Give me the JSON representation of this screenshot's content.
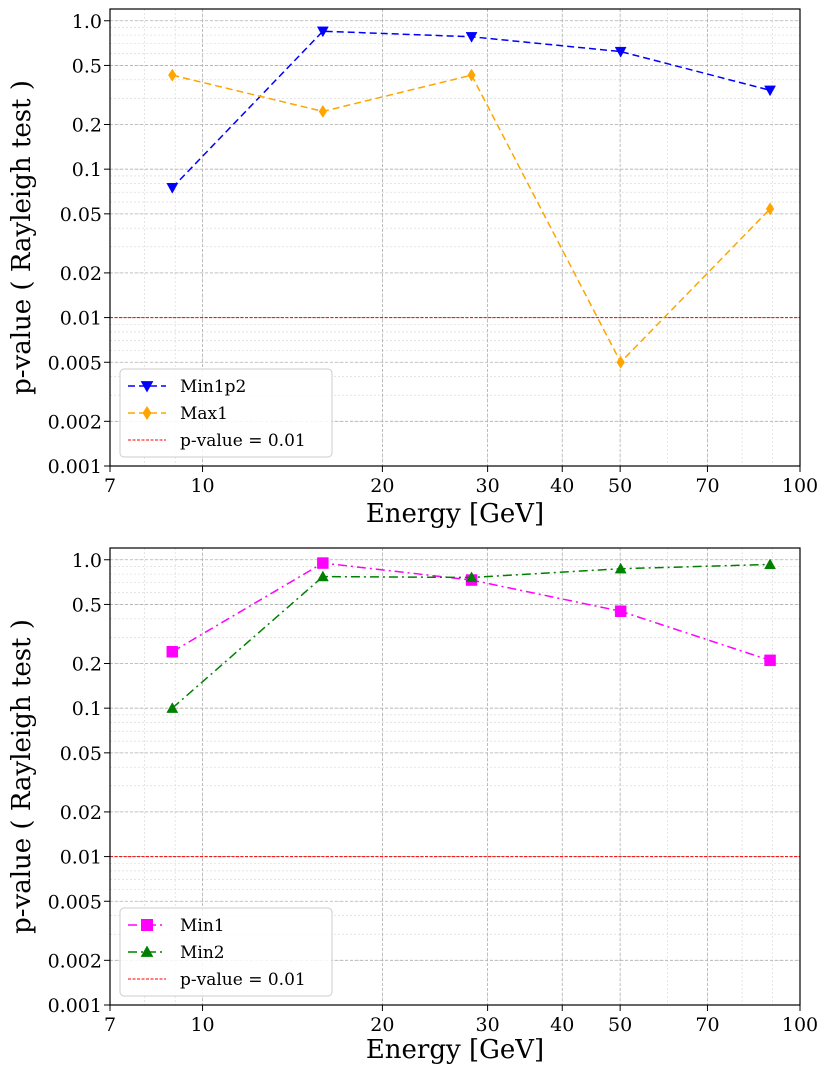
{
  "chart_data": [
    {
      "type": "line",
      "xscale": "log",
      "yscale": "log",
      "xlim": [
        7,
        100
      ],
      "ylim": [
        0.001,
        1.2
      ],
      "xticks": [
        7,
        10,
        20,
        30,
        40,
        50,
        70,
        100
      ],
      "xtick_labels": [
        "7",
        "10",
        "20",
        "30",
        "40",
        "50",
        "70",
        "100"
      ],
      "yticks": [
        0.001,
        0.002,
        0.005,
        0.01,
        0.02,
        0.05,
        0.1,
        0.2,
        0.5,
        1.0
      ],
      "ytick_labels": [
        "0.001",
        "0.002",
        "0.005",
        "0.01",
        "0.02",
        "0.05",
        "0.1",
        "0.2",
        "0.5",
        "1.0"
      ],
      "xlabel": "Energy [GeV]",
      "ylabel": "p-value  ( Rayleigh test )",
      "grid": true,
      "legend_position": "lower-left",
      "x": [
        8.9,
        15.9,
        28.2,
        50.1,
        89.1
      ],
      "series": [
        {
          "name": "Min1p2",
          "values": [
            0.075,
            0.85,
            0.78,
            0.62,
            0.34
          ],
          "color": "#0000ff",
          "marker": "triangle-down",
          "linestyle": "dashed"
        },
        {
          "name": "Max1",
          "values": [
            0.43,
            0.245,
            0.43,
            0.005,
            0.054
          ],
          "color": "#ffa500",
          "marker": "diamond",
          "linestyle": "dashed"
        }
      ],
      "threshold": {
        "label": "p-value = 0.01",
        "value": 0.01,
        "color": "#ff0000"
      }
    },
    {
      "type": "line",
      "xscale": "log",
      "yscale": "log",
      "xlim": [
        7,
        100
      ],
      "ylim": [
        0.001,
        1.2
      ],
      "xticks": [
        7,
        10,
        20,
        30,
        40,
        50,
        70,
        100
      ],
      "xtick_labels": [
        "7",
        "10",
        "20",
        "30",
        "40",
        "50",
        "70",
        "100"
      ],
      "yticks": [
        0.001,
        0.002,
        0.005,
        0.01,
        0.02,
        0.05,
        0.1,
        0.2,
        0.5,
        1.0
      ],
      "ytick_labels": [
        "0.001",
        "0.002",
        "0.005",
        "0.01",
        "0.02",
        "0.05",
        "0.1",
        "0.2",
        "0.5",
        "1.0"
      ],
      "xlabel": "Energy [GeV]",
      "ylabel": "p-value  ( Rayleigh test )",
      "grid": true,
      "legend_position": "lower-left",
      "x": [
        8.9,
        15.9,
        28.2,
        50.1,
        89.1
      ],
      "series": [
        {
          "name": "Min1",
          "values": [
            0.24,
            0.95,
            0.73,
            0.45,
            0.21
          ],
          "color": "#ff00ff",
          "marker": "square",
          "linestyle": "dashdot"
        },
        {
          "name": "Min2",
          "values": [
            0.1,
            0.77,
            0.76,
            0.87,
            0.93
          ],
          "color": "#008000",
          "marker": "triangle-up",
          "linestyle": "dashdot"
        }
      ],
      "threshold": {
        "label": "p-value = 0.01",
        "value": 0.01,
        "color": "#ff0000"
      }
    }
  ]
}
